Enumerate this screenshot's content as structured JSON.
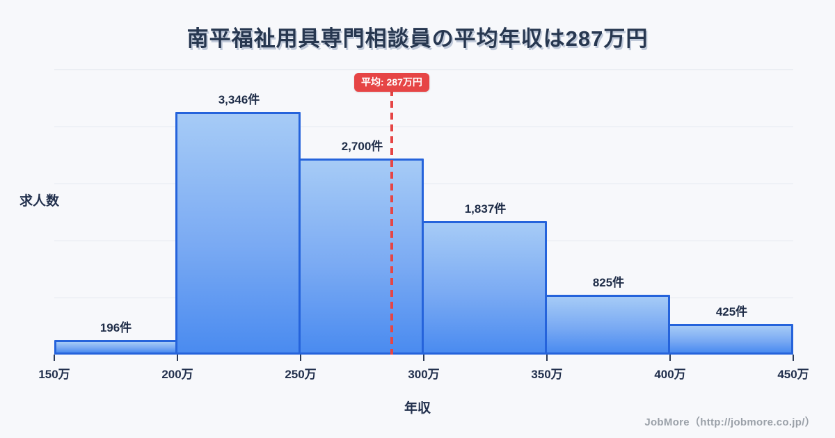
{
  "title": "南平福祉用具専門相談員の平均年収は287万円",
  "footer": "JobMore（http://jobmore.co.jp/）",
  "colors": {
    "background": "#f7f8fb",
    "bar_fill_top": "#a6cbf6",
    "bar_fill_bottom": "#4a8bf0",
    "bar_border": "#2563db",
    "average_line": "#e64545",
    "badge_background": "#e64545",
    "badge_text": "#ffffff",
    "title_text": "#273750",
    "axis_text": "#22304d",
    "gridline": "#e3e8ef",
    "footer_text": "#9aa0a8"
  },
  "chart_data": {
    "type": "bar",
    "title": "南平福祉用具専門相談員の平均年収は287万円",
    "xlabel": "年収",
    "ylabel": "求人数",
    "x_unit": "万円",
    "bin_edges_man_yen": [
      150,
      200,
      250,
      300,
      350,
      400,
      450
    ],
    "x_tick_labels": [
      "150万",
      "200万",
      "250万",
      "300万",
      "350万",
      "400万",
      "450万"
    ],
    "values": [
      196,
      3346,
      2700,
      1837,
      825,
      425
    ],
    "bar_labels": [
      "196件",
      "3,346件",
      "2,700件",
      "1,837件",
      "825件",
      "425件"
    ],
    "average": {
      "value": 287,
      "label": "平均: 287万円"
    },
    "ylim": [
      0,
      3930
    ],
    "grid": true,
    "legend": false
  }
}
